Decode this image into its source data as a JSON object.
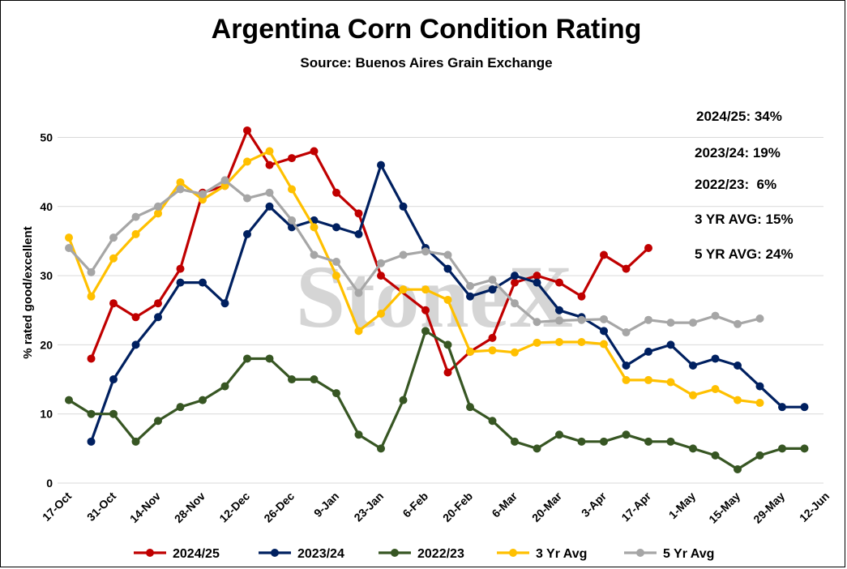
{
  "chart_data": {
    "type": "line",
    "title": "Argentina Corn Condition Rating",
    "subtitle": "Source: Buenos Aires Grain Exchange",
    "ylabel": "% rated good/excellent",
    "xlabel": "",
    "ylim": [
      0,
      55
    ],
    "y_ticks": [
      0,
      10,
      20,
      30,
      40,
      50
    ],
    "grid": "horizontal",
    "legend_position": "bottom",
    "watermark": "StoneX",
    "x_tick_labels": [
      "17-Oct",
      "31-Oct",
      "14-Nov",
      "28-Nov",
      "12-Dec",
      "26-Dec",
      "9-Jan",
      "23-Jan",
      "6-Feb",
      "20-Feb",
      "6-Mar",
      "20-Mar",
      "3-Apr",
      "17-Apr",
      "1-May",
      "15-May",
      "29-May",
      "12-Jun"
    ],
    "annotations": [
      "2024/25: 34%",
      "2023/24: 19%",
      "2022/23:  6%",
      "3 YR AVG: 15%",
      "5 YR AVG: 24%"
    ],
    "series": [
      {
        "name": "2024/25",
        "color": "#c00000",
        "x": [
          1,
          2,
          3,
          4,
          5,
          6,
          7,
          8,
          9,
          10,
          11,
          12,
          13,
          14,
          16,
          17,
          18,
          19,
          20,
          21,
          22,
          23,
          24,
          25,
          26,
          27,
          28
        ],
        "values": [
          18,
          26,
          24,
          26,
          31,
          42,
          43,
          51,
          46,
          47,
          48,
          42,
          39,
          30,
          25,
          16,
          19,
          21,
          29,
          30,
          29,
          27,
          33,
          31,
          34,
          null,
          null
        ]
      },
      {
        "name": "2023/24",
        "color": "#002060",
        "x": [
          1,
          2,
          3,
          4,
          5,
          6,
          7,
          8,
          9,
          10,
          11,
          12,
          13,
          14,
          15,
          16,
          17,
          18,
          19,
          20,
          21,
          22,
          23,
          24,
          25,
          26,
          27,
          28,
          29,
          30,
          31,
          32,
          33
        ],
        "values": [
          6,
          15,
          20,
          24,
          29,
          29,
          26,
          36,
          40,
          37,
          38,
          37,
          36,
          46,
          40,
          34,
          31,
          27,
          28,
          30,
          29,
          25,
          24,
          22,
          17,
          19,
          20,
          17,
          18,
          17,
          14,
          11,
          11
        ]
      },
      {
        "name": "2022/23",
        "color": "#375623",
        "x": [
          0,
          1,
          2,
          3,
          4,
          5,
          6,
          7,
          8,
          9,
          10,
          11,
          12,
          13,
          14,
          15,
          16,
          17,
          18,
          19,
          20,
          21,
          22,
          23,
          24,
          25,
          26,
          27,
          28,
          29,
          30,
          31,
          32,
          33
        ],
        "values": [
          12,
          10,
          10,
          6,
          9,
          11,
          12,
          14,
          18,
          18,
          15,
          15,
          13,
          7,
          5,
          12,
          22,
          20,
          11,
          9,
          6,
          5,
          7,
          6,
          6,
          7,
          6,
          6,
          5,
          4,
          2,
          4,
          5,
          5
        ]
      },
      {
        "name": "3 Yr Avg",
        "color": "#ffc000",
        "x": [
          0,
          1,
          2,
          3,
          4,
          5,
          6,
          7,
          8,
          9,
          10,
          11,
          12,
          13,
          14,
          15,
          16,
          17,
          18,
          19,
          20,
          21,
          22,
          23,
          24,
          25,
          26,
          27,
          28,
          29,
          30,
          31
        ],
        "values": [
          35.5,
          27,
          32.5,
          36,
          39,
          43.5,
          41,
          43,
          46.5,
          48,
          42.5,
          37,
          30,
          22,
          24.5,
          28,
          28,
          26.5,
          19,
          19.2,
          18.9,
          20.3,
          20.4,
          20.4,
          20.1,
          14.9,
          14.9,
          14.6,
          12.7,
          13.6,
          12,
          11.6
        ]
      },
      {
        "name": "5 Yr Avg",
        "color": "#a6a6a6",
        "x": [
          0,
          1,
          2,
          3,
          4,
          5,
          6,
          7,
          8,
          9,
          10,
          11,
          12,
          13,
          14,
          15,
          16,
          17,
          18,
          19,
          20,
          21,
          22,
          23,
          24,
          25,
          26,
          27,
          28,
          29,
          30,
          31
        ],
        "values": [
          34,
          30.5,
          35.5,
          38.5,
          40,
          42.5,
          41.8,
          43.8,
          41.2,
          42,
          38,
          33,
          32,
          27.5,
          31.8,
          33,
          33.5,
          33,
          28.5,
          29.4,
          26,
          23.3,
          23.5,
          23.6,
          23.7,
          21.8,
          23.6,
          23.2,
          23.2,
          24.2,
          23,
          23.8
        ]
      }
    ]
  }
}
